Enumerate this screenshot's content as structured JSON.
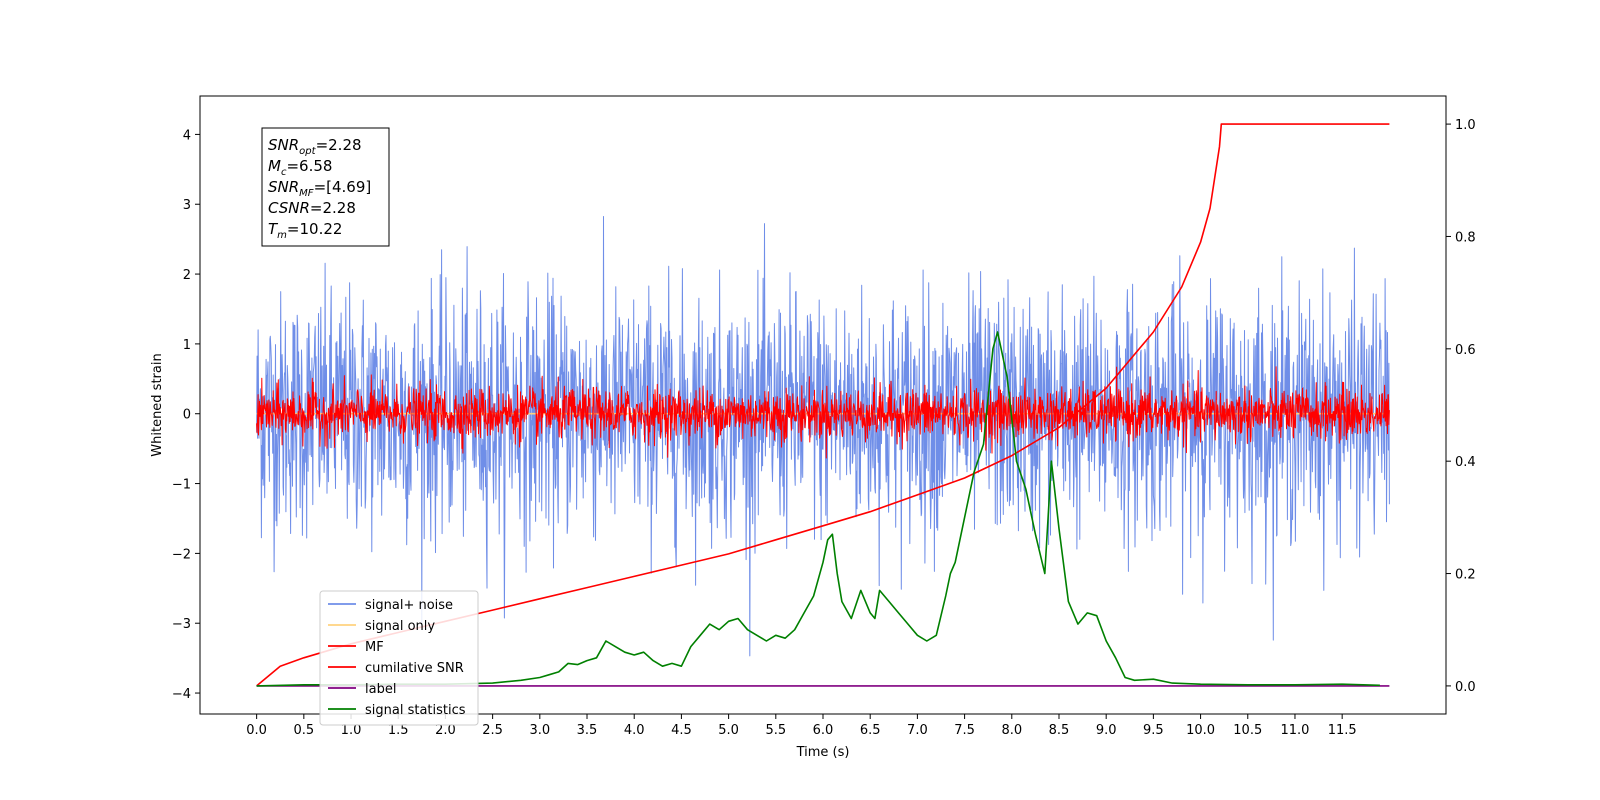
{
  "chart_data": {
    "type": "line",
    "xlabel": "Time (s)",
    "ylabel": "Whitened strain",
    "xlim": [
      -0.6,
      12.6
    ],
    "ylim": [
      -4.3,
      4.55
    ],
    "y2lim": [
      -0.05,
      1.05
    ],
    "x_ticks": [
      "0.0",
      "0.5",
      "1.0",
      "1.5",
      "2.0",
      "2.5",
      "3.0",
      "3.5",
      "4.0",
      "4.5",
      "5.0",
      "5.5",
      "6.0",
      "6.5",
      "7.0",
      "7.5",
      "8.0",
      "8.5",
      "9.0",
      "9.5",
      "10.0",
      "10.5",
      "11.0",
      "11.5"
    ],
    "x_tick_values": [
      0.0,
      0.5,
      1.0,
      1.5,
      2.0,
      2.5,
      3.0,
      3.5,
      4.0,
      4.5,
      5.0,
      5.5,
      6.0,
      6.5,
      7.0,
      7.5,
      8.0,
      8.5,
      9.0,
      9.5,
      10.0,
      10.5,
      11.0,
      11.5
    ],
    "y_ticks": [
      "4",
      "3",
      "2",
      "1",
      "0",
      "−1",
      "−2",
      "−3",
      "−4"
    ],
    "y_tick_values": [
      4,
      3,
      2,
      1,
      0,
      -1,
      -2,
      -3,
      -4
    ],
    "y2_ticks": [
      "1.0",
      "0.8",
      "0.6",
      "0.4",
      "0.2",
      "0.0"
    ],
    "y2_tick_values": [
      1.0,
      0.8,
      0.6,
      0.4,
      0.2,
      0.0
    ],
    "grid": false,
    "legend_position": "lower-left",
    "series": [
      {
        "name": "signal+ noise",
        "axis": "left",
        "color": "#6f8ee8",
        "kind": "noise",
        "t_range": [
          0.0,
          12.0
        ],
        "typical_abs": 1.15,
        "max_abs": 3.7
      },
      {
        "name": "signal only",
        "axis": "left",
        "color": "#ffd27f",
        "kind": "flat",
        "value": 0.0
      },
      {
        "name": "MF",
        "axis": "left",
        "color": "#ff0000",
        "kind": "noise",
        "t_range": [
          0.0,
          12.0
        ],
        "typical_abs": 0.25,
        "max_abs": 0.85
      },
      {
        "name": "cumilative SNR",
        "axis": "right",
        "color": "#ff0000",
        "x": [
          0.0,
          0.25,
          0.5,
          1.0,
          1.5,
          2.0,
          2.5,
          3.0,
          3.5,
          4.0,
          4.5,
          5.0,
          5.5,
          6.0,
          6.5,
          7.0,
          7.5,
          8.0,
          8.5,
          9.0,
          9.5,
          9.8,
          10.0,
          10.1,
          10.2,
          10.22,
          12.0
        ],
        "values": [
          0.0,
          0.035,
          0.05,
          0.075,
          0.095,
          0.115,
          0.135,
          0.155,
          0.175,
          0.195,
          0.215,
          0.235,
          0.26,
          0.285,
          0.31,
          0.34,
          0.37,
          0.41,
          0.46,
          0.53,
          0.63,
          0.71,
          0.79,
          0.85,
          0.96,
          1.0,
          1.0
        ]
      },
      {
        "name": "label",
        "axis": "right",
        "color": "#800080",
        "kind": "flat",
        "value": 0.0
      },
      {
        "name": "signal statistics",
        "axis": "right",
        "color": "#008000",
        "x": [
          0.0,
          0.5,
          1.0,
          1.5,
          2.0,
          2.5,
          2.8,
          3.0,
          3.1,
          3.2,
          3.3,
          3.4,
          3.5,
          3.6,
          3.7,
          3.8,
          3.9,
          4.0,
          4.1,
          4.2,
          4.3,
          4.4,
          4.5,
          4.6,
          4.7,
          4.8,
          4.9,
          5.0,
          5.1,
          5.2,
          5.3,
          5.4,
          5.5,
          5.6,
          5.7,
          5.8,
          5.9,
          6.0,
          6.05,
          6.1,
          6.15,
          6.2,
          6.3,
          6.4,
          6.5,
          6.55,
          6.6,
          6.7,
          6.8,
          6.9,
          7.0,
          7.1,
          7.2,
          7.3,
          7.35,
          7.4,
          7.5,
          7.6,
          7.7,
          7.8,
          7.85,
          7.95,
          8.05,
          8.15,
          8.25,
          8.35,
          8.42,
          8.5,
          8.6,
          8.7,
          8.8,
          8.9,
          9.0,
          9.1,
          9.2,
          9.3,
          9.5,
          9.7,
          10.0,
          10.5,
          11.0,
          11.5,
          11.9
        ],
        "values": [
          0.0,
          0.002,
          0.002,
          0.003,
          0.003,
          0.005,
          0.01,
          0.015,
          0.02,
          0.025,
          0.04,
          0.038,
          0.045,
          0.05,
          0.08,
          0.07,
          0.06,
          0.055,
          0.06,
          0.045,
          0.035,
          0.04,
          0.035,
          0.07,
          0.09,
          0.11,
          0.1,
          0.115,
          0.12,
          0.1,
          0.09,
          0.08,
          0.09,
          0.085,
          0.1,
          0.13,
          0.16,
          0.22,
          0.26,
          0.27,
          0.2,
          0.15,
          0.12,
          0.17,
          0.13,
          0.12,
          0.17,
          0.15,
          0.13,
          0.11,
          0.09,
          0.08,
          0.09,
          0.16,
          0.2,
          0.22,
          0.3,
          0.38,
          0.43,
          0.6,
          0.63,
          0.55,
          0.4,
          0.35,
          0.27,
          0.2,
          0.4,
          0.28,
          0.15,
          0.11,
          0.13,
          0.125,
          0.08,
          0.05,
          0.015,
          0.01,
          0.012,
          0.005,
          0.003,
          0.002,
          0.002,
          0.003,
          0.001
        ]
      }
    ],
    "annotations": [
      {
        "main": "SNR",
        "sub": "opt",
        "value": "=2.28"
      },
      {
        "main": "M",
        "sub": "c",
        "value": "=6.58"
      },
      {
        "main": "SNR",
        "sub": "MF",
        "value": "=[4.69]"
      },
      {
        "main": "CSNR",
        "sub": "",
        "value": "=2.28"
      },
      {
        "main": "T",
        "sub": "m",
        "value": "=10.22"
      }
    ]
  }
}
